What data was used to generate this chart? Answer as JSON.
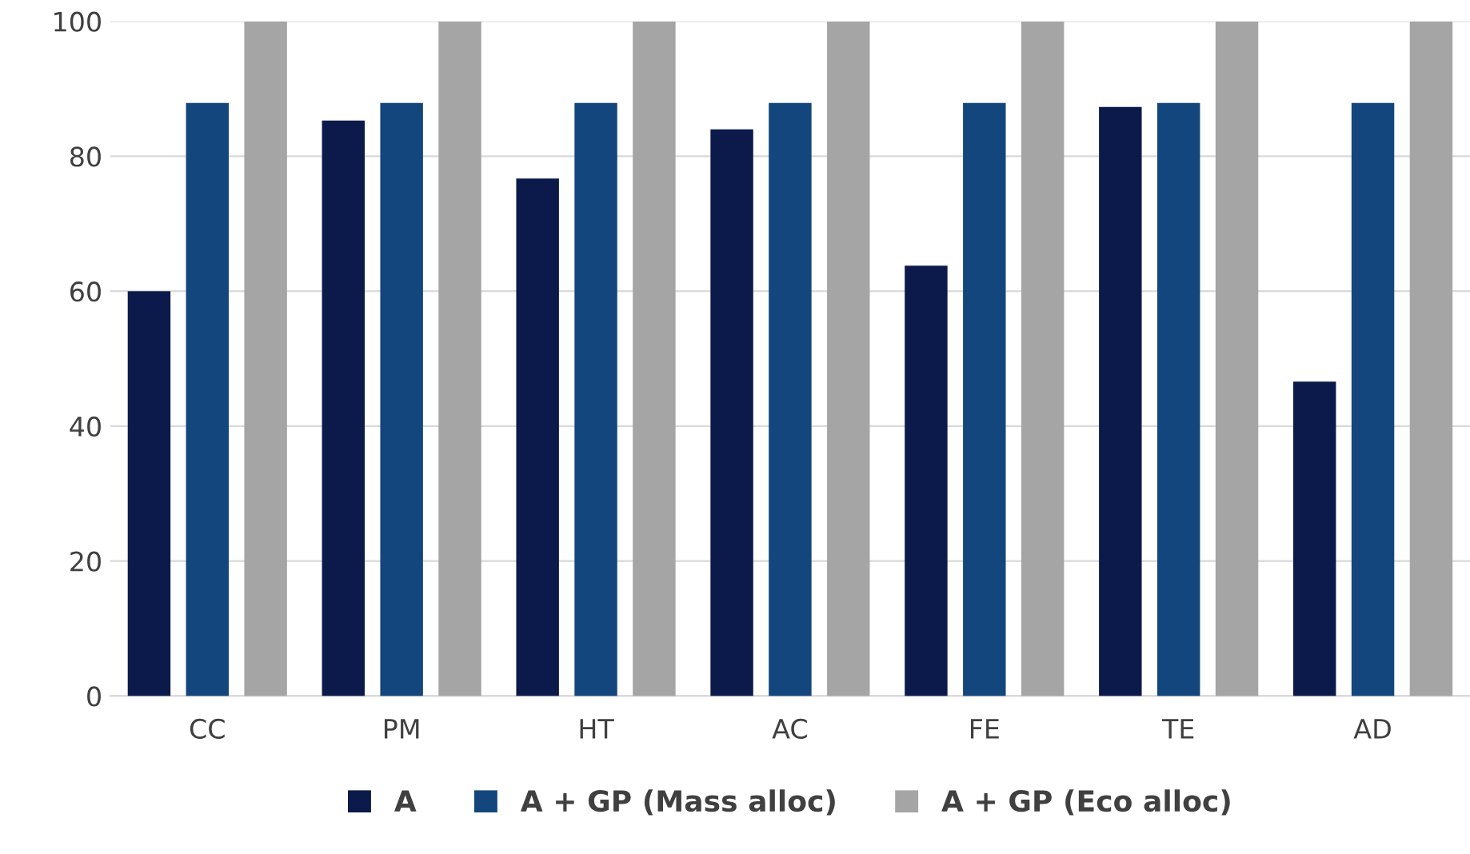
{
  "chart_data": {
    "type": "bar",
    "categories": [
      "CC",
      "PM",
      "HT",
      "AC",
      "FE",
      "TE",
      "AD"
    ],
    "series": [
      {
        "name": "A",
        "color": "#0b1a4a",
        "values": [
          60.0,
          85.3,
          76.7,
          84.0,
          63.8,
          87.3,
          46.6
        ]
      },
      {
        "name": "A + GP (Mass alloc)",
        "color": "#12467c",
        "values": [
          87.9,
          87.9,
          87.9,
          87.9,
          87.9,
          87.9,
          87.9
        ]
      },
      {
        "name": "A + GP (Eco alloc)",
        "color": "#a5a5a5",
        "values": [
          100,
          100,
          100,
          100,
          100,
          100,
          100
        ]
      }
    ],
    "ylim": [
      0,
      100
    ],
    "yticks": [
      0,
      20,
      40,
      60,
      80,
      100
    ],
    "grid": "y",
    "legend": "bottom"
  }
}
